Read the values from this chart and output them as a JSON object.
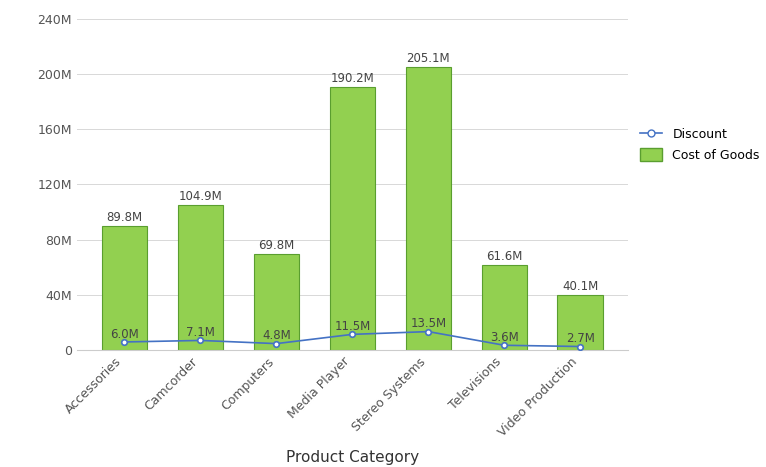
{
  "categories": [
    "Accessories",
    "Camcorder",
    "Computers",
    "Media Player",
    "Stereo Systems",
    "Televisions",
    "Video Production"
  ],
  "cost_of_goods": [
    89.8,
    104.9,
    69.8,
    190.2,
    205.1,
    61.6,
    40.1
  ],
  "discount": [
    6.0,
    7.1,
    4.8,
    11.5,
    13.5,
    3.6,
    2.7
  ],
  "bar_color": "#92D050",
  "bar_edge_color": "#5a9e2f",
  "line_color": "#4472C4",
  "line_marker": "o",
  "xlabel": "Product Category",
  "ylim": [
    0,
    240
  ],
  "yticks": [
    0,
    40,
    80,
    120,
    160,
    200,
    240
  ],
  "ytick_labels": [
    "0",
    "40M",
    "80M",
    "120M",
    "160M",
    "200M",
    "240M"
  ],
  "legend_discount": "Discount",
  "legend_cost": "Cost of Goods",
  "background_color": "#ffffff",
  "grid_color": "#d8d8d8",
  "label_fontsize": 8.5,
  "tick_fontsize": 9,
  "xlabel_fontsize": 11
}
